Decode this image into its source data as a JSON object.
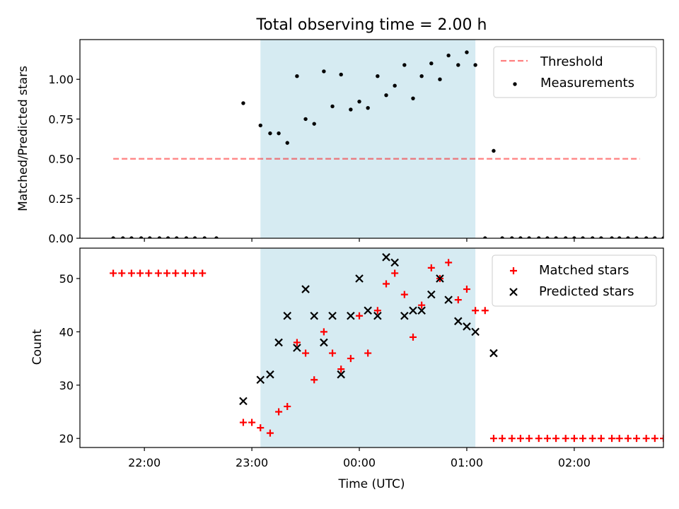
{
  "chart_data": [
    {
      "type": "scatter",
      "title": "Total observing time = 2.00 h",
      "ylabel": "Matched/Predicted stars",
      "xlabel": "",
      "x_unit": "time of day (hours, UTC; values >24 are after midnight)",
      "xlim": [
        21.4,
        26.83
      ],
      "ylim": [
        0.0,
        1.25
      ],
      "yticks": [
        "0.00",
        "0.25",
        "0.50",
        "0.75",
        "1.00"
      ],
      "shaded_span": {
        "x0": 23.08,
        "x1": 25.08,
        "color": "#add8e6"
      },
      "threshold": {
        "name": "Threshold",
        "value": 0.5,
        "x_range": [
          21.71,
          26.61
        ],
        "color": "#ff0000",
        "style": "dashed",
        "alpha": 0.5
      },
      "series": [
        {
          "name": "Measurements",
          "color": "#000000",
          "marker": "dot",
          "points": [
            [
              21.71,
              0
            ],
            [
              21.8,
              0
            ],
            [
              21.88,
              0
            ],
            [
              21.97,
              0
            ],
            [
              22.05,
              0
            ],
            [
              22.14,
              0
            ],
            [
              22.22,
              0
            ],
            [
              22.3,
              0
            ],
            [
              22.39,
              0
            ],
            [
              22.47,
              0
            ],
            [
              22.56,
              0
            ],
            [
              22.67,
              0
            ],
            [
              22.92,
              0.85
            ],
            [
              23.08,
              0.71
            ],
            [
              23.17,
              0.66
            ],
            [
              23.25,
              0.66
            ],
            [
              23.33,
              0.6
            ],
            [
              23.42,
              1.02
            ],
            [
              23.5,
              0.75
            ],
            [
              23.58,
              0.72
            ],
            [
              23.67,
              1.05
            ],
            [
              23.75,
              0.83
            ],
            [
              23.83,
              1.03
            ],
            [
              23.92,
              0.81
            ],
            [
              24.0,
              0.86
            ],
            [
              24.08,
              0.82
            ],
            [
              24.17,
              1.02
            ],
            [
              24.25,
              0.9
            ],
            [
              24.33,
              0.96
            ],
            [
              24.42,
              1.09
            ],
            [
              24.5,
              0.88
            ],
            [
              24.58,
              1.02
            ],
            [
              24.67,
              1.1
            ],
            [
              24.75,
              1.0
            ],
            [
              24.83,
              1.15
            ],
            [
              24.92,
              1.09
            ],
            [
              25.0,
              1.17
            ],
            [
              25.08,
              1.09
            ],
            [
              25.17,
              0
            ],
            [
              25.25,
              0.55
            ],
            [
              25.33,
              0
            ],
            [
              25.42,
              0
            ],
            [
              25.5,
              0
            ],
            [
              25.58,
              0
            ],
            [
              25.67,
              0
            ],
            [
              25.75,
              0
            ],
            [
              25.83,
              0
            ],
            [
              25.92,
              0
            ],
            [
              26.0,
              0
            ],
            [
              26.08,
              0
            ],
            [
              26.17,
              0
            ],
            [
              26.25,
              0
            ],
            [
              26.35,
              0
            ],
            [
              26.42,
              0
            ],
            [
              26.5,
              0
            ],
            [
              26.58,
              0
            ],
            [
              26.67,
              0
            ],
            [
              26.75,
              0
            ],
            [
              26.83,
              0
            ]
          ]
        }
      ],
      "legend_position": "upper right"
    },
    {
      "type": "scatter",
      "title": "",
      "ylabel": "Count",
      "xlabel": "Time (UTC)",
      "xlim": [
        21.4,
        26.83
      ],
      "ylim": [
        18.3,
        55.7
      ],
      "yticks": [
        "20",
        "30",
        "40",
        "50"
      ],
      "xticks": [
        {
          "value": 22,
          "label": "22:00"
        },
        {
          "value": 23,
          "label": "23:00"
        },
        {
          "value": 24,
          "label": "00:00"
        },
        {
          "value": 25,
          "label": "01:00"
        },
        {
          "value": 26,
          "label": "02:00"
        }
      ],
      "shaded_span": {
        "x0": 23.08,
        "x1": 25.08,
        "color": "#add8e6"
      },
      "series": [
        {
          "name": "Matched stars",
          "color": "#ff0000",
          "marker": "plus",
          "points": [
            [
              21.71,
              51
            ],
            [
              21.79,
              51
            ],
            [
              21.88,
              51
            ],
            [
              21.96,
              51
            ],
            [
              22.04,
              51
            ],
            [
              22.13,
              51
            ],
            [
              22.21,
              51
            ],
            [
              22.29,
              51
            ],
            [
              22.38,
              51
            ],
            [
              22.46,
              51
            ],
            [
              22.54,
              51
            ],
            [
              22.92,
              23
            ],
            [
              23.0,
              23
            ],
            [
              23.08,
              22
            ],
            [
              23.17,
              21
            ],
            [
              23.25,
              25
            ],
            [
              23.33,
              26
            ],
            [
              23.42,
              38
            ],
            [
              23.5,
              36
            ],
            [
              23.58,
              31
            ],
            [
              23.67,
              40
            ],
            [
              23.75,
              36
            ],
            [
              23.83,
              33
            ],
            [
              23.92,
              35
            ],
            [
              24.0,
              43
            ],
            [
              24.08,
              36
            ],
            [
              24.17,
              44
            ],
            [
              24.25,
              49
            ],
            [
              24.33,
              51
            ],
            [
              24.42,
              47
            ],
            [
              24.5,
              39
            ],
            [
              24.58,
              45
            ],
            [
              24.67,
              52
            ],
            [
              24.75,
              50
            ],
            [
              24.83,
              53
            ],
            [
              24.92,
              46
            ],
            [
              25.0,
              48
            ],
            [
              25.08,
              44
            ],
            [
              25.17,
              44
            ],
            [
              25.25,
              20
            ],
            [
              25.33,
              20
            ],
            [
              25.42,
              20
            ],
            [
              25.5,
              20
            ],
            [
              25.58,
              20
            ],
            [
              25.67,
              20
            ],
            [
              25.75,
              20
            ],
            [
              25.83,
              20
            ],
            [
              25.92,
              20
            ],
            [
              26.0,
              20
            ],
            [
              26.08,
              20
            ],
            [
              26.17,
              20
            ],
            [
              26.25,
              20
            ],
            [
              26.35,
              20
            ],
            [
              26.42,
              20
            ],
            [
              26.5,
              20
            ],
            [
              26.58,
              20
            ],
            [
              26.67,
              20
            ],
            [
              26.75,
              20
            ],
            [
              26.83,
              20
            ]
          ]
        },
        {
          "name": "Predicted stars",
          "color": "#000000",
          "marker": "x",
          "points": [
            [
              22.92,
              27
            ],
            [
              23.08,
              31
            ],
            [
              23.17,
              32
            ],
            [
              23.25,
              38
            ],
            [
              23.33,
              43
            ],
            [
              23.42,
              37
            ],
            [
              23.5,
              48
            ],
            [
              23.58,
              43
            ],
            [
              23.67,
              38
            ],
            [
              23.75,
              43
            ],
            [
              23.83,
              32
            ],
            [
              23.92,
              43
            ],
            [
              24.0,
              50
            ],
            [
              24.08,
              44
            ],
            [
              24.17,
              43
            ],
            [
              24.25,
              54
            ],
            [
              24.33,
              53
            ],
            [
              24.42,
              43
            ],
            [
              24.5,
              44
            ],
            [
              24.58,
              44
            ],
            [
              24.67,
              47
            ],
            [
              24.75,
              50
            ],
            [
              24.83,
              46
            ],
            [
              24.92,
              42
            ],
            [
              25.0,
              41
            ],
            [
              25.08,
              40
            ],
            [
              25.25,
              36
            ]
          ]
        }
      ],
      "legend_position": "upper right"
    }
  ]
}
